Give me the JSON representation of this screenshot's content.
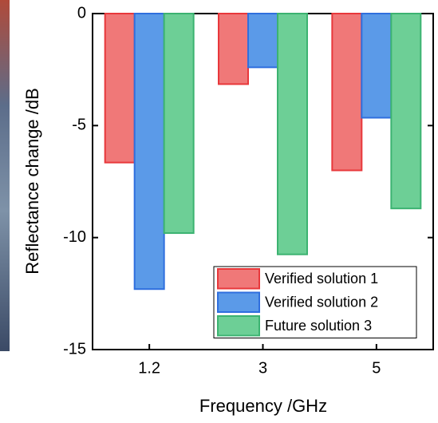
{
  "chart_data": {
    "type": "bar",
    "x_label": "Frequency /GHz",
    "y_label": "Reflectance change /dB",
    "categories": [
      "1.2",
      "3",
      "5"
    ],
    "series": [
      {
        "name": "Verified solution 1",
        "color": "#f07878",
        "values": [
          -6.65,
          -3.15,
          -7.0
        ]
      },
      {
        "name": "Verified solution 2",
        "color": "#5b9ae8",
        "values": [
          -12.3,
          -2.4,
          -4.65
        ]
      },
      {
        "name": "Future solution 3",
        "color": "#6dcf96",
        "values": [
          -9.8,
          -10.75,
          -8.7
        ]
      }
    ],
    "ylim": [
      -15,
      0
    ],
    "yticks": [
      0,
      -5,
      -10,
      -15
    ]
  }
}
